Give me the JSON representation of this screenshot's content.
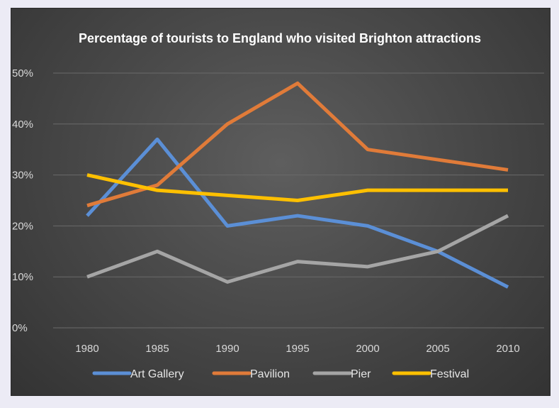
{
  "chart_data": {
    "type": "line",
    "title": "Percentage of tourists to England who visited Brighton attractions",
    "x": [
      "1980",
      "1985",
      "1990",
      "1995",
      "2000",
      "2005",
      "2010"
    ],
    "y_ticks": [
      "0%",
      "10%",
      "20%",
      "30%",
      "40%",
      "50%"
    ],
    "ylim": [
      0,
      50
    ],
    "grid": true,
    "legend_position": "bottom",
    "series": [
      {
        "name": "Art Gallery",
        "color": "#5b8fd6",
        "values": [
          22,
          37,
          20,
          22,
          20,
          15,
          8
        ]
      },
      {
        "name": "Pavilion",
        "color": "#e07b39",
        "values": [
          24,
          28,
          40,
          48,
          35,
          33,
          31
        ]
      },
      {
        "name": "Pier",
        "color": "#a5a5a5",
        "values": [
          10,
          15,
          9,
          13,
          12,
          15,
          22
        ]
      },
      {
        "name": "Festival",
        "color": "#ffc000",
        "values": [
          30,
          27,
          26,
          25,
          27,
          27,
          27
        ]
      }
    ]
  }
}
